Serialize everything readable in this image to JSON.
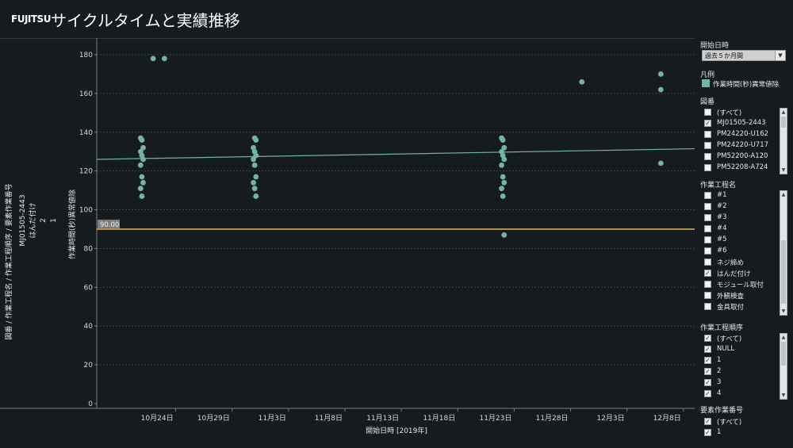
{
  "header": {
    "logo": "FUJITSU",
    "title": "サイクルタイムと実績推移"
  },
  "chart_data": {
    "type": "scatter",
    "xlabel": "開始日時 [2019年]",
    "ylabel": "作業時間(秒)異常値除",
    "row_header": [
      "図番 / 作業工程名 / 作業工程順序 / 要素作業番号",
      "MJ01505-2443",
      "はんだ付け",
      "2",
      "1"
    ],
    "x_ticks": [
      "10月24日",
      "10月29日",
      "11月3日",
      "11月8日",
      "11月13日",
      "11月18日",
      "11月23日",
      "11月28日",
      "12月3日",
      "12月8日"
    ],
    "y_ticks": [
      "0",
      "20",
      "40",
      "60",
      "80",
      "100",
      "120",
      "140",
      "160",
      "180"
    ],
    "ylim": [
      0,
      185
    ],
    "xlim": [
      "2019-10-17",
      "2019-12-09"
    ],
    "reference_line": {
      "value": 90,
      "label": "90.00"
    },
    "trend_line": {
      "start": [
        "2019-10-17",
        126
      ],
      "end": [
        "2019-12-09",
        131.5
      ]
    },
    "grid": true,
    "series": [
      {
        "color": "#71b5a3",
        "points": [
          [
            "2019-10-21",
            137
          ],
          [
            "2019-10-21",
            136
          ],
          [
            "2019-10-21",
            132
          ],
          [
            "2019-10-21",
            130
          ],
          [
            "2019-10-21",
            128
          ],
          [
            "2019-10-21",
            126
          ],
          [
            "2019-10-21",
            123
          ],
          [
            "2019-10-21",
            117
          ],
          [
            "2019-10-21",
            114
          ],
          [
            "2019-10-21",
            111
          ],
          [
            "2019-10-21",
            107
          ],
          [
            "2019-10-22",
            178
          ],
          [
            "2019-10-23",
            178
          ],
          [
            "2019-10-31",
            137
          ],
          [
            "2019-10-31",
            136
          ],
          [
            "2019-10-31",
            132
          ],
          [
            "2019-10-31",
            130
          ],
          [
            "2019-10-31",
            128
          ],
          [
            "2019-10-31",
            126
          ],
          [
            "2019-10-31",
            123
          ],
          [
            "2019-10-31",
            117
          ],
          [
            "2019-10-31",
            114
          ],
          [
            "2019-10-31",
            111
          ],
          [
            "2019-10-31",
            107
          ],
          [
            "2019-11-22",
            137
          ],
          [
            "2019-11-22",
            136
          ],
          [
            "2019-11-22",
            132
          ],
          [
            "2019-11-22",
            130
          ],
          [
            "2019-11-22",
            128
          ],
          [
            "2019-11-22",
            126
          ],
          [
            "2019-11-22",
            123
          ],
          [
            "2019-11-22",
            117
          ],
          [
            "2019-11-22",
            114
          ],
          [
            "2019-11-22",
            111
          ],
          [
            "2019-11-22",
            107
          ],
          [
            "2019-11-22",
            87
          ],
          [
            "2019-11-29",
            166
          ],
          [
            "2019-12-06",
            170
          ],
          [
            "2019-12-06",
            162
          ],
          [
            "2019-12-06",
            124
          ]
        ]
      }
    ]
  },
  "sidebar": {
    "start_date": {
      "title": "開始日時",
      "value": "過去５か月間"
    },
    "legend": {
      "title": "凡例",
      "label": "作業時間(秒)異常値除"
    },
    "drawing": {
      "title": "図番",
      "items": [
        {
          "label": "(すべて)",
          "checked": ""
        },
        {
          "label": "MJ01505-2443",
          "checked": "✓"
        },
        {
          "label": "PM24220-U162",
          "checked": ""
        },
        {
          "label": "PM24220-U717",
          "checked": ""
        },
        {
          "label": "PM52200-A120",
          "checked": ""
        },
        {
          "label": "PM52208-A724",
          "checked": ""
        }
      ]
    },
    "process": {
      "title": "作業工程名",
      "items": [
        {
          "label": "#1",
          "checked": ""
        },
        {
          "label": "#2",
          "checked": ""
        },
        {
          "label": "#3",
          "checked": ""
        },
        {
          "label": "#4",
          "checked": ""
        },
        {
          "label": "#5",
          "checked": ""
        },
        {
          "label": "#6",
          "checked": ""
        },
        {
          "label": "ネジ締め",
          "checked": ""
        },
        {
          "label": "はんだ付け",
          "checked": "✓"
        },
        {
          "label": "モジュール取付",
          "checked": ""
        },
        {
          "label": "外観検査",
          "checked": ""
        },
        {
          "label": "金具取付",
          "checked": ""
        }
      ]
    },
    "order": {
      "title": "作業工程順序",
      "items": [
        {
          "label": "(すべて)",
          "checked": "✓"
        },
        {
          "label": "NULL",
          "checked": "✓"
        },
        {
          "label": "1",
          "checked": "✓"
        },
        {
          "label": "2",
          "checked": "✓"
        },
        {
          "label": "3",
          "checked": "✓"
        },
        {
          "label": "4",
          "checked": "✓"
        }
      ]
    },
    "element": {
      "title": "要素作業番号",
      "items": [
        {
          "label": "(すべて)",
          "checked": "✓"
        },
        {
          "label": "1",
          "checked": "✓"
        }
      ]
    }
  }
}
